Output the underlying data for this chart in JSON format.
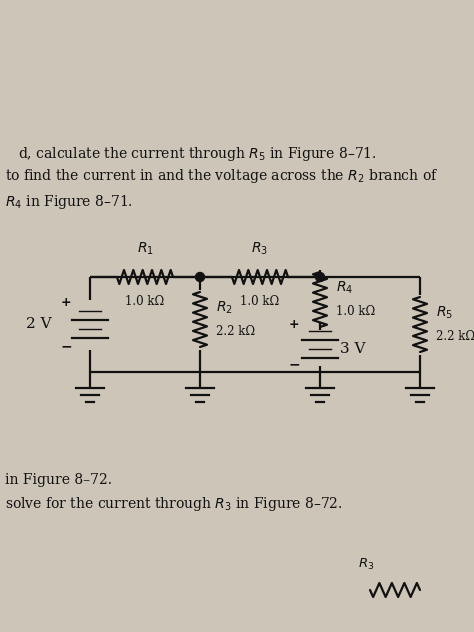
{
  "bg_color": "#ccc5b8",
  "text_color": "#1a1a1a",
  "title_lines": [
    "d, calculate the current through $R_5$ in Figure 8–71.",
    "to find the current in and the voltage across the $R_2$ branch of",
    "$R_4$ in Figure 8–71."
  ],
  "bottom_lines": [
    "in Figure 8–72.",
    "solve for the current through $R_3$ in Figure 8–72."
  ],
  "circuit": {
    "V1_label": "2 V",
    "V2_label": "3 V",
    "R1_label": "$R_1$",
    "R1_val": "1.0 kΩ",
    "R2_label": "$R_2$",
    "R2_val": "2.2 kΩ",
    "R3_label": "$R_3$",
    "R3_val": "1.0 kΩ",
    "R4_label": "$R_4$",
    "R4_val": "1.0 kΩ",
    "R5_label": "$R_5$",
    "R5_val": "2.2 kΩ"
  },
  "bottom_r3_label": "$R_3$"
}
